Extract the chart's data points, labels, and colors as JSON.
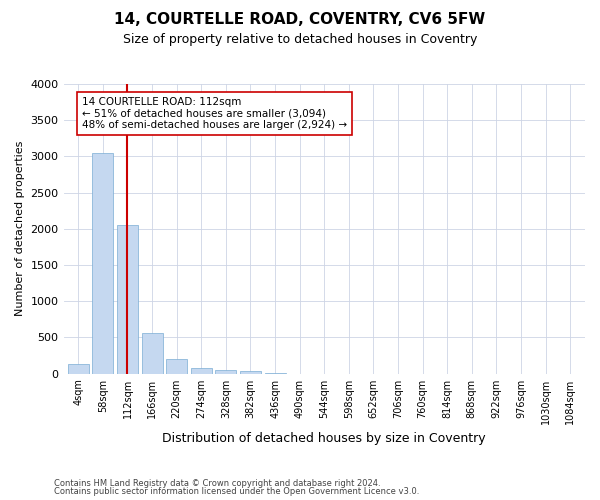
{
  "title1": "14, COURTELLE ROAD, COVENTRY, CV6 5FW",
  "title2": "Size of property relative to detached houses in Coventry",
  "xlabel": "Distribution of detached houses by size in Coventry",
  "ylabel": "Number of detached properties",
  "categories": [
    "4sqm",
    "58sqm",
    "112sqm",
    "166sqm",
    "220sqm",
    "274sqm",
    "328sqm",
    "382sqm",
    "436sqm",
    "490sqm",
    "544sqm",
    "598sqm",
    "652sqm",
    "706sqm",
    "760sqm",
    "814sqm",
    "868sqm",
    "922sqm",
    "976sqm",
    "1030sqm",
    "1084sqm"
  ],
  "bar_values": [
    130,
    3050,
    2050,
    560,
    200,
    75,
    50,
    30,
    10,
    0,
    0,
    0,
    0,
    0,
    0,
    0,
    0,
    0,
    0,
    0,
    0
  ],
  "bar_color": "#c5d8f0",
  "bar_edge_color": "#7aadd4",
  "property_line_index": 2,
  "annotation_line1": "14 COURTELLE ROAD: 112sqm",
  "annotation_line2": "← 51% of detached houses are smaller (3,094)",
  "annotation_line3": "48% of semi-detached houses are larger (2,924) →",
  "annotation_box_color": "#ffffff",
  "annotation_box_edge_color": "#cc0000",
  "red_line_color": "#cc0000",
  "ylim": [
    0,
    4000
  ],
  "yticks": [
    0,
    500,
    1000,
    1500,
    2000,
    2500,
    3000,
    3500,
    4000
  ],
  "footer1": "Contains HM Land Registry data © Crown copyright and database right 2024.",
  "footer2": "Contains public sector information licensed under the Open Government Licence v3.0.",
  "bg_color": "#ffffff",
  "grid_color": "#cdd5e5",
  "title1_fontsize": 11,
  "title2_fontsize": 9,
  "annotation_fontsize": 7.5,
  "ylabel_fontsize": 8,
  "xlabel_fontsize": 9,
  "tick_fontsize": 7,
  "footer_fontsize": 6
}
